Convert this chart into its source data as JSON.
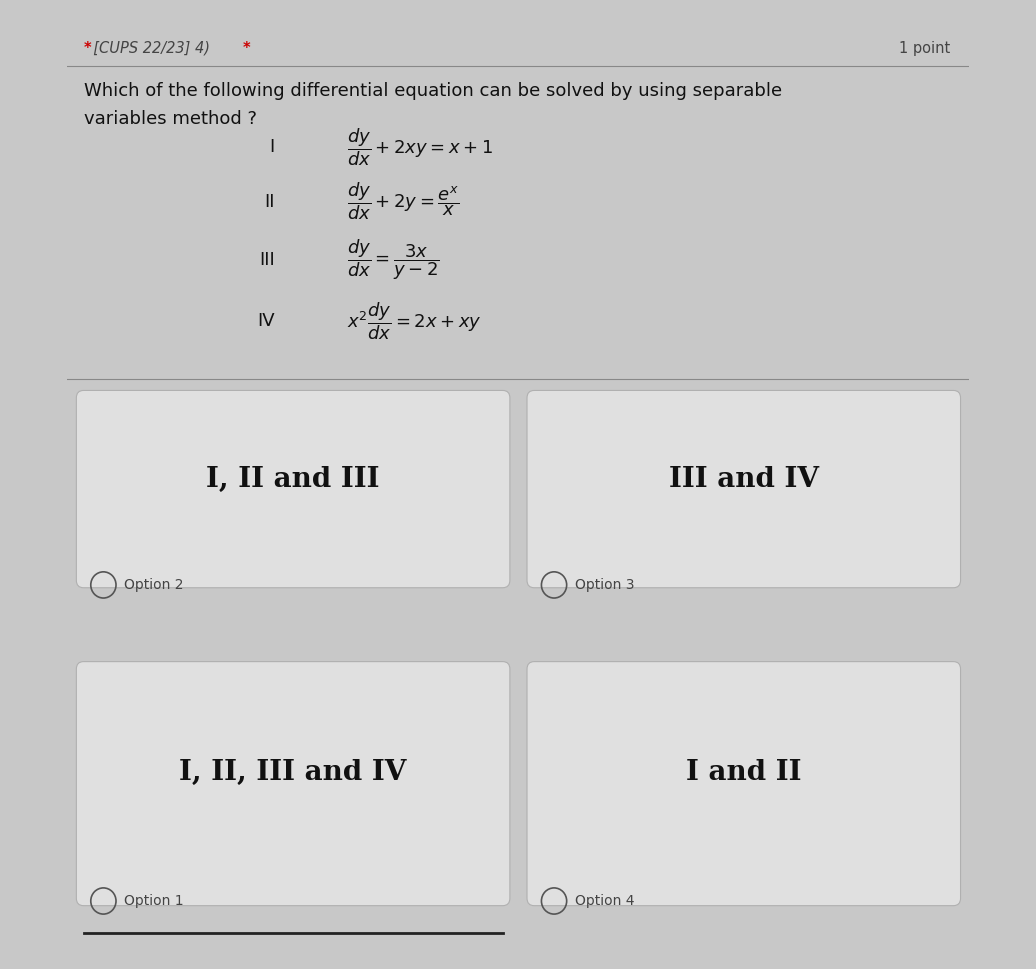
{
  "header_text": "* [CUPS 22/23] 4) *",
  "points_text": "1 point",
  "question_line1": "Which of the following differential equation can be solved by using separable",
  "question_line2": "variables method ?",
  "outer_bg": "#c8c8c8",
  "content_bg": "#e8e8e8",
  "box_bg": "#e0e0e0",
  "box_border": "#b0b0b0",
  "line_color": "#888888",
  "text_color": "#111111",
  "header_color": "#444444",
  "star_color": "#cc0000",
  "title_fontsize": 10.5,
  "question_fontsize": 13,
  "eq_label_fontsize": 13,
  "eq_fontsize": 13,
  "option_fontsize": 20,
  "radio_label_fontsize": 10,
  "option_texts": [
    [
      "I, II and III",
      "III and IV"
    ],
    [
      "I, II, III and IV",
      "I and II"
    ]
  ],
  "radio_labels": [
    [
      "Option 2",
      "Option 3"
    ],
    [
      "Option 1",
      "Option 4"
    ]
  ]
}
